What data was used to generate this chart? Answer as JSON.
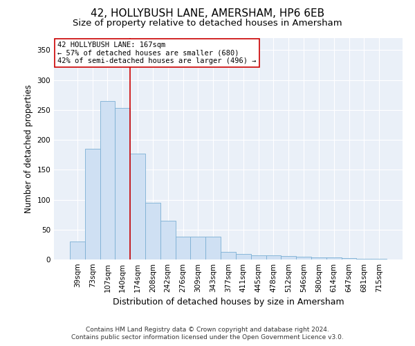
{
  "title": "42, HOLLYBUSH LANE, AMERSHAM, HP6 6EB",
  "subtitle": "Size of property relative to detached houses in Amersham",
  "xlabel": "Distribution of detached houses by size in Amersham",
  "ylabel": "Number of detached properties",
  "bar_labels": [
    "39sqm",
    "73sqm",
    "107sqm",
    "140sqm",
    "174sqm",
    "208sqm",
    "242sqm",
    "276sqm",
    "309sqm",
    "343sqm",
    "377sqm",
    "411sqm",
    "445sqm",
    "478sqm",
    "512sqm",
    "546sqm",
    "580sqm",
    "614sqm",
    "647sqm",
    "681sqm",
    "715sqm"
  ],
  "bar_values": [
    30,
    185,
    265,
    253,
    177,
    95,
    65,
    38,
    38,
    38,
    13,
    9,
    7,
    7,
    6,
    5,
    4,
    3,
    2,
    1,
    1
  ],
  "bar_color": "#cfe0f3",
  "bar_edge_color": "#7bafd4",
  "vline_x": 3.5,
  "vline_color": "#cc0000",
  "ylim": [
    0,
    370
  ],
  "yticks": [
    0,
    50,
    100,
    150,
    200,
    250,
    300,
    350
  ],
  "annotation_line1": "42 HOLLYBUSH LANE: 167sqm",
  "annotation_line2": "← 57% of detached houses are smaller (680)",
  "annotation_line3": "42% of semi-detached houses are larger (496) →",
  "annotation_box_color": "#ffffff",
  "annotation_box_edge": "#cc0000",
  "footer_line1": "Contains HM Land Registry data © Crown copyright and database right 2024.",
  "footer_line2": "Contains public sector information licensed under the Open Government Licence v3.0.",
  "bg_color": "#eaf0f8",
  "grid_color": "#ffffff",
  "title_fontsize": 11,
  "subtitle_fontsize": 9.5,
  "tick_fontsize": 7.5,
  "ylabel_fontsize": 8.5,
  "xlabel_fontsize": 9,
  "annotation_fontsize": 7.5,
  "footer_fontsize": 6.5
}
